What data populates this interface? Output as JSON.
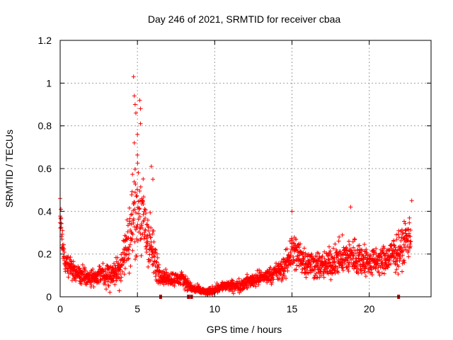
{
  "chart_data": {
    "type": "scatter",
    "title": "Day 246 of 2021, SRMTID for receiver cbaa",
    "xlabel": "GPS time / hours",
    "ylabel": "SRMTID / TECUs",
    "xlim": [
      0,
      24
    ],
    "ylim": [
      0,
      1.2
    ],
    "xticks": [
      0,
      5,
      10,
      15,
      20
    ],
    "yticks": [
      0,
      0.2,
      0.4,
      0.6,
      0.8,
      1,
      1.2
    ],
    "ytick_labels": [
      "0",
      "0.2",
      "0.4",
      "0.6",
      "0.8",
      "1",
      "1.2"
    ],
    "grid": true,
    "marker": "+",
    "color": "#ff0000",
    "gap_marker_color": "#cc0000",
    "gaps_x": [
      6.5,
      8.3,
      8.5,
      21.9
    ],
    "trend": [
      {
        "x": 0.0,
        "y": 0.33,
        "spread": 0.09
      },
      {
        "x": 0.3,
        "y": 0.16,
        "spread": 0.05
      },
      {
        "x": 1.0,
        "y": 0.11,
        "spread": 0.04
      },
      {
        "x": 2.0,
        "y": 0.09,
        "spread": 0.04
      },
      {
        "x": 3.0,
        "y": 0.1,
        "spread": 0.05
      },
      {
        "x": 3.8,
        "y": 0.12,
        "spread": 0.07
      },
      {
        "x": 4.4,
        "y": 0.25,
        "spread": 0.12
      },
      {
        "x": 4.8,
        "y": 0.42,
        "spread": 0.2
      },
      {
        "x": 5.1,
        "y": 0.4,
        "spread": 0.22
      },
      {
        "x": 5.6,
        "y": 0.3,
        "spread": 0.16
      },
      {
        "x": 6.2,
        "y": 0.15,
        "spread": 0.08
      },
      {
        "x": 6.6,
        "y": 0.09,
        "spread": 0.03
      },
      {
        "x": 8.0,
        "y": 0.08,
        "spread": 0.03
      },
      {
        "x": 8.5,
        "y": 0.04,
        "spread": 0.02
      },
      {
        "x": 9.5,
        "y": 0.02,
        "spread": 0.015
      },
      {
        "x": 10.5,
        "y": 0.05,
        "spread": 0.02
      },
      {
        "x": 11.5,
        "y": 0.05,
        "spread": 0.025
      },
      {
        "x": 12.5,
        "y": 0.08,
        "spread": 0.03
      },
      {
        "x": 13.5,
        "y": 0.1,
        "spread": 0.03
      },
      {
        "x": 14.5,
        "y": 0.13,
        "spread": 0.05
      },
      {
        "x": 15.0,
        "y": 0.22,
        "spread": 0.09
      },
      {
        "x": 16.0,
        "y": 0.16,
        "spread": 0.06
      },
      {
        "x": 17.0,
        "y": 0.14,
        "spread": 0.06
      },
      {
        "x": 18.0,
        "y": 0.18,
        "spread": 0.07
      },
      {
        "x": 19.0,
        "y": 0.19,
        "spread": 0.08
      },
      {
        "x": 20.0,
        "y": 0.16,
        "spread": 0.06
      },
      {
        "x": 21.0,
        "y": 0.17,
        "spread": 0.06
      },
      {
        "x": 22.0,
        "y": 0.22,
        "spread": 0.08
      },
      {
        "x": 22.7,
        "y": 0.3,
        "spread": 0.1
      }
    ],
    "peaks": [
      {
        "x": 0.0,
        "y": 0.46
      },
      {
        "x": 0.05,
        "y": 0.41
      },
      {
        "x": 4.75,
        "y": 1.03
      },
      {
        "x": 4.8,
        "y": 0.94
      },
      {
        "x": 4.85,
        "y": 0.9
      },
      {
        "x": 4.9,
        "y": 0.86
      },
      {
        "x": 5.15,
        "y": 0.92
      },
      {
        "x": 5.2,
        "y": 0.88
      },
      {
        "x": 4.8,
        "y": 0.72
      },
      {
        "x": 5.2,
        "y": 0.81
      },
      {
        "x": 5.0,
        "y": 0.76
      },
      {
        "x": 5.9,
        "y": 0.61
      },
      {
        "x": 6.0,
        "y": 0.55
      },
      {
        "x": 15.0,
        "y": 0.4
      },
      {
        "x": 18.8,
        "y": 0.42
      },
      {
        "x": 22.75,
        "y": 0.45
      }
    ]
  }
}
